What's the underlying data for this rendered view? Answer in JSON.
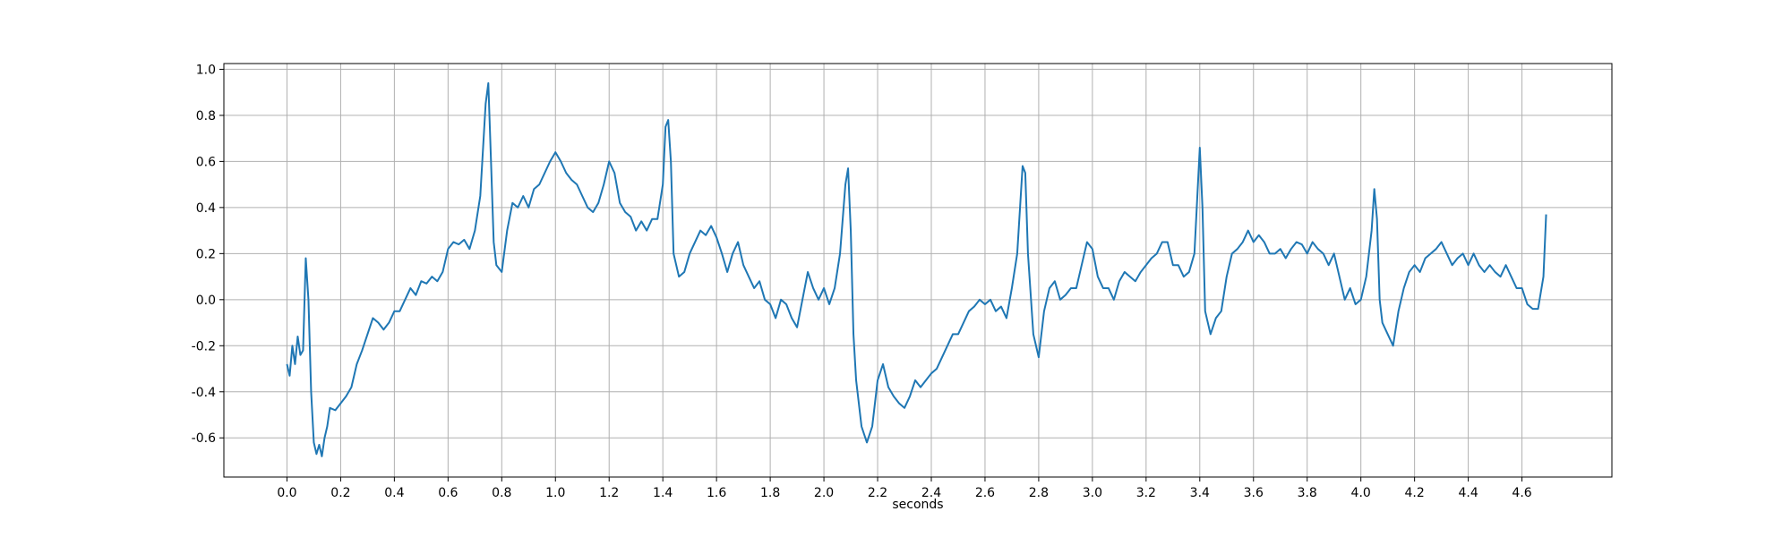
{
  "chart_data": {
    "type": "line",
    "xlabel": "seconds",
    "x": [
      0.0,
      0.01,
      0.02,
      0.03,
      0.04,
      0.05,
      0.06,
      0.07,
      0.08,
      0.09,
      0.1,
      0.11,
      0.12,
      0.13,
      0.14,
      0.15,
      0.16,
      0.18,
      0.2,
      0.22,
      0.24,
      0.26,
      0.28,
      0.3,
      0.32,
      0.34,
      0.36,
      0.38,
      0.4,
      0.42,
      0.44,
      0.46,
      0.48,
      0.5,
      0.52,
      0.54,
      0.56,
      0.58,
      0.6,
      0.62,
      0.64,
      0.66,
      0.68,
      0.7,
      0.72,
      0.74,
      0.75,
      0.76,
      0.77,
      0.78,
      0.8,
      0.82,
      0.84,
      0.86,
      0.88,
      0.9,
      0.92,
      0.94,
      0.96,
      0.98,
      1.0,
      1.02,
      1.04,
      1.06,
      1.08,
      1.1,
      1.12,
      1.14,
      1.16,
      1.18,
      1.2,
      1.22,
      1.24,
      1.26,
      1.28,
      1.3,
      1.32,
      1.34,
      1.36,
      1.38,
      1.4,
      1.41,
      1.42,
      1.43,
      1.44,
      1.46,
      1.48,
      1.5,
      1.52,
      1.54,
      1.56,
      1.58,
      1.6,
      1.62,
      1.64,
      1.66,
      1.68,
      1.7,
      1.72,
      1.74,
      1.76,
      1.78,
      1.8,
      1.82,
      1.84,
      1.86,
      1.88,
      1.9,
      1.92,
      1.94,
      1.96,
      1.98,
      2.0,
      2.02,
      2.04,
      2.06,
      2.08,
      2.09,
      2.1,
      2.11,
      2.12,
      2.14,
      2.16,
      2.18,
      2.2,
      2.22,
      2.24,
      2.26,
      2.28,
      2.3,
      2.32,
      2.34,
      2.36,
      2.38,
      2.4,
      2.42,
      2.44,
      2.46,
      2.48,
      2.5,
      2.52,
      2.54,
      2.56,
      2.58,
      2.6,
      2.62,
      2.64,
      2.66,
      2.68,
      2.7,
      2.72,
      2.74,
      2.75,
      2.76,
      2.78,
      2.8,
      2.82,
      2.84,
      2.86,
      2.88,
      2.9,
      2.92,
      2.94,
      2.96,
      2.98,
      3.0,
      3.02,
      3.04,
      3.06,
      3.08,
      3.1,
      3.12,
      3.14,
      3.16,
      3.18,
      3.2,
      3.22,
      3.24,
      3.26,
      3.28,
      3.3,
      3.32,
      3.34,
      3.36,
      3.38,
      3.4,
      3.41,
      3.42,
      3.44,
      3.46,
      3.48,
      3.5,
      3.52,
      3.54,
      3.56,
      3.58,
      3.6,
      3.62,
      3.64,
      3.66,
      3.68,
      3.7,
      3.72,
      3.74,
      3.76,
      3.78,
      3.8,
      3.82,
      3.84,
      3.86,
      3.88,
      3.9,
      3.92,
      3.94,
      3.96,
      3.98,
      4.0,
      4.02,
      4.04,
      4.05,
      4.06,
      4.07,
      4.08,
      4.1,
      4.12,
      4.14,
      4.16,
      4.18,
      4.2,
      4.22,
      4.24,
      4.26,
      4.28,
      4.3,
      4.32,
      4.34,
      4.36,
      4.38,
      4.4,
      4.42,
      4.44,
      4.46,
      4.48,
      4.5,
      4.52,
      4.54,
      4.56,
      4.58,
      4.6,
      4.62,
      4.64,
      4.66,
      4.68,
      4.69
    ],
    "series": [
      {
        "color": "#1f77b4",
        "values": [
          -0.28,
          -0.33,
          -0.2,
          -0.28,
          -0.16,
          -0.24,
          -0.22,
          0.18,
          0.0,
          -0.4,
          -0.62,
          -0.67,
          -0.63,
          -0.68,
          -0.6,
          -0.55,
          -0.47,
          -0.48,
          -0.45,
          -0.42,
          -0.38,
          -0.28,
          -0.22,
          -0.15,
          -0.08,
          -0.1,
          -0.13,
          -0.1,
          -0.05,
          -0.05,
          0.0,
          0.05,
          0.02,
          0.08,
          0.07,
          0.1,
          0.08,
          0.12,
          0.22,
          0.25,
          0.24,
          0.26,
          0.22,
          0.3,
          0.45,
          0.85,
          0.94,
          0.6,
          0.25,
          0.15,
          0.12,
          0.3,
          0.42,
          0.4,
          0.45,
          0.4,
          0.48,
          0.5,
          0.55,
          0.6,
          0.64,
          0.6,
          0.55,
          0.52,
          0.5,
          0.45,
          0.4,
          0.38,
          0.42,
          0.5,
          0.6,
          0.55,
          0.42,
          0.38,
          0.36,
          0.3,
          0.34,
          0.3,
          0.35,
          0.35,
          0.5,
          0.75,
          0.78,
          0.6,
          0.2,
          0.1,
          0.12,
          0.2,
          0.25,
          0.3,
          0.28,
          0.32,
          0.27,
          0.2,
          0.12,
          0.2,
          0.25,
          0.15,
          0.1,
          0.05,
          0.08,
          0.0,
          -0.02,
          -0.08,
          0.0,
          -0.02,
          -0.08,
          -0.12,
          0.0,
          0.12,
          0.05,
          0.0,
          0.05,
          -0.02,
          0.05,
          0.2,
          0.5,
          0.57,
          0.3,
          -0.15,
          -0.35,
          -0.55,
          -0.62,
          -0.55,
          -0.35,
          -0.28,
          -0.38,
          -0.42,
          -0.45,
          -0.47,
          -0.42,
          -0.35,
          -0.38,
          -0.35,
          -0.32,
          -0.3,
          -0.25,
          -0.2,
          -0.15,
          -0.15,
          -0.1,
          -0.05,
          -0.03,
          0.0,
          -0.02,
          0.0,
          -0.05,
          -0.03,
          -0.08,
          0.05,
          0.2,
          0.58,
          0.55,
          0.2,
          -0.15,
          -0.25,
          -0.05,
          0.05,
          0.08,
          0.0,
          0.02,
          0.05,
          0.05,
          0.15,
          0.25,
          0.22,
          0.1,
          0.05,
          0.05,
          0.0,
          0.08,
          0.12,
          0.1,
          0.08,
          0.12,
          0.15,
          0.18,
          0.2,
          0.25,
          0.25,
          0.15,
          0.15,
          0.1,
          0.12,
          0.2,
          0.66,
          0.4,
          -0.05,
          -0.15,
          -0.08,
          -0.05,
          0.1,
          0.2,
          0.22,
          0.25,
          0.3,
          0.25,
          0.28,
          0.25,
          0.2,
          0.2,
          0.22,
          0.18,
          0.22,
          0.25,
          0.24,
          0.2,
          0.25,
          0.22,
          0.2,
          0.15,
          0.2,
          0.1,
          0.0,
          0.05,
          -0.02,
          0.0,
          0.1,
          0.3,
          0.48,
          0.35,
          0.0,
          -0.1,
          -0.15,
          -0.2,
          -0.05,
          0.05,
          0.12,
          0.15,
          0.12,
          0.18,
          0.2,
          0.22,
          0.25,
          0.2,
          0.15,
          0.18,
          0.2,
          0.15,
          0.2,
          0.15,
          0.12,
          0.15,
          0.12,
          0.1,
          0.15,
          0.1,
          0.05,
          0.05,
          -0.02,
          -0.04,
          -0.04,
          0.1,
          0.37
        ]
      }
    ],
    "xlim": [
      -0.235,
      4.935
    ],
    "xticks": [
      {
        "value": 0,
        "label": "0.0"
      },
      0.2,
      0.4,
      0.6,
      0.8,
      {
        "value": 1,
        "label": "1.0"
      },
      1.2,
      1.4,
      1.6,
      1.8,
      {
        "value": 2,
        "label": "2.0"
      },
      2.2,
      2.4,
      2.6,
      2.8,
      {
        "value": 3,
        "label": "3.0"
      },
      3.2,
      3.4,
      3.6,
      3.8,
      {
        "value": 4,
        "label": "4.0"
      },
      4.2,
      4.4,
      4.6
    ],
    "ylim": [
      -0.77,
      1.025
    ],
    "yticks": [
      -0.6,
      -0.4,
      -0.2,
      {
        "value": 0,
        "label": "0.0"
      },
      0.2,
      0.4,
      0.6,
      0.8,
      {
        "value": 1,
        "label": "1.0"
      }
    ],
    "grid": true
  }
}
